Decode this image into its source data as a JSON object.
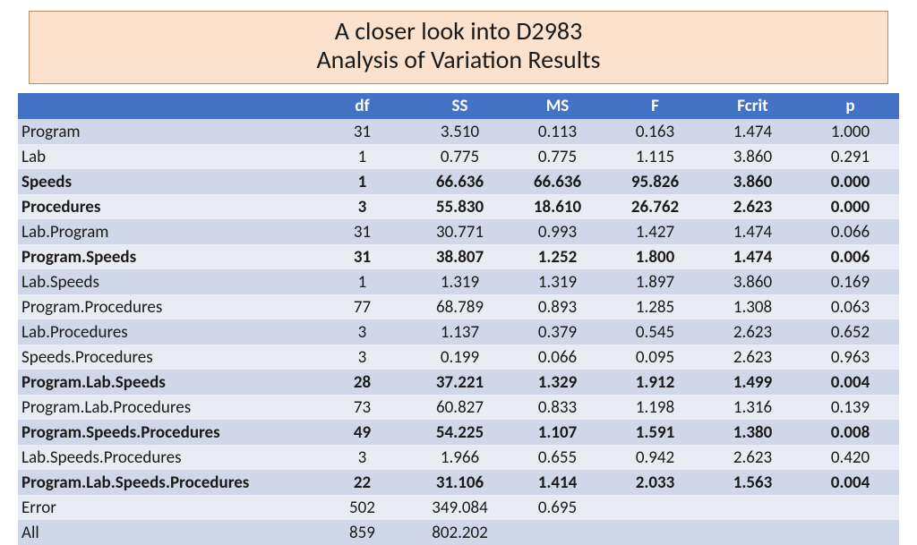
{
  "title": {
    "line1": "A closer look into D2983",
    "line2": "Analysis of Variation Results"
  },
  "colors": {
    "title_bg": "#fce1cd",
    "title_border": "#b98b65",
    "header_bg": "#4472c4",
    "header_text": "#ffffff",
    "row_odd": "#d0d7e8",
    "row_even": "#e9ecf5",
    "text": "#1a1a1a",
    "page_bg": "#ffffff"
  },
  "table": {
    "columns": [
      "",
      "df",
      "SS",
      "MS",
      "F",
      "Fcrit",
      "p"
    ],
    "rows": [
      {
        "bold": false,
        "label": "Program",
        "df": "31",
        "SS": "3.510",
        "MS": "0.113",
        "F": "0.163",
        "Fcrit": "1.474",
        "p": "1.000"
      },
      {
        "bold": false,
        "label": "Lab",
        "df": "1",
        "SS": "0.775",
        "MS": "0.775",
        "F": "1.115",
        "Fcrit": "3.860",
        "p": "0.291"
      },
      {
        "bold": true,
        "label": "Speeds",
        "df": "1",
        "SS": "66.636",
        "MS": "66.636",
        "F": "95.826",
        "Fcrit": "3.860",
        "p": "0.000"
      },
      {
        "bold": true,
        "label": "Procedures",
        "df": "3",
        "SS": "55.830",
        "MS": "18.610",
        "F": "26.762",
        "Fcrit": "2.623",
        "p": "0.000"
      },
      {
        "bold": false,
        "label": "Lab.Program",
        "df": "31",
        "SS": "30.771",
        "MS": "0.993",
        "F": "1.427",
        "Fcrit": "1.474",
        "p": "0.066"
      },
      {
        "bold": true,
        "label": "Program.Speeds",
        "df": "31",
        "SS": "38.807",
        "MS": "1.252",
        "F": "1.800",
        "Fcrit": "1.474",
        "p": "0.006"
      },
      {
        "bold": false,
        "label": "Lab.Speeds",
        "df": "1",
        "SS": "1.319",
        "MS": "1.319",
        "F": "1.897",
        "Fcrit": "3.860",
        "p": "0.169"
      },
      {
        "bold": false,
        "label": "Program.Procedures",
        "df": "77",
        "SS": "68.789",
        "MS": "0.893",
        "F": "1.285",
        "Fcrit": "1.308",
        "p": "0.063"
      },
      {
        "bold": false,
        "label": "Lab.Procedures",
        "df": "3",
        "SS": "1.137",
        "MS": "0.379",
        "F": "0.545",
        "Fcrit": "2.623",
        "p": "0.652"
      },
      {
        "bold": false,
        "label": "Speeds.Procedures",
        "df": "3",
        "SS": "0.199",
        "MS": "0.066",
        "F": "0.095",
        "Fcrit": "2.623",
        "p": "0.963"
      },
      {
        "bold": true,
        "label": "Program.Lab.Speeds",
        "df": "28",
        "SS": "37.221",
        "MS": "1.329",
        "F": "1.912",
        "Fcrit": "1.499",
        "p": "0.004"
      },
      {
        "bold": false,
        "label": "Program.Lab.Procedures",
        "df": "73",
        "SS": "60.827",
        "MS": "0.833",
        "F": "1.198",
        "Fcrit": "1.316",
        "p": "0.139"
      },
      {
        "bold": true,
        "label": "Program.Speeds.Procedures",
        "df": "49",
        "SS": "54.225",
        "MS": "1.107",
        "F": "1.591",
        "Fcrit": "1.380",
        "p": "0.008"
      },
      {
        "bold": false,
        "label": "Lab.Speeds.Procedures",
        "df": "3",
        "SS": "1.966",
        "MS": "0.655",
        "F": "0.942",
        "Fcrit": "2.623",
        "p": "0.420"
      },
      {
        "bold": true,
        "label": "Program.Lab.Speeds.Procedures",
        "df": "22",
        "SS": "31.106",
        "MS": "1.414",
        "F": "2.033",
        "Fcrit": "1.563",
        "p": "0.004"
      },
      {
        "bold": false,
        "label": "Error",
        "df": "502",
        "SS": "349.084",
        "MS": "0.695",
        "F": "",
        "Fcrit": "",
        "p": ""
      },
      {
        "bold": false,
        "label": "All",
        "df": "859",
        "SS": "802.202",
        "MS": "",
        "F": "",
        "Fcrit": "",
        "p": ""
      }
    ]
  }
}
